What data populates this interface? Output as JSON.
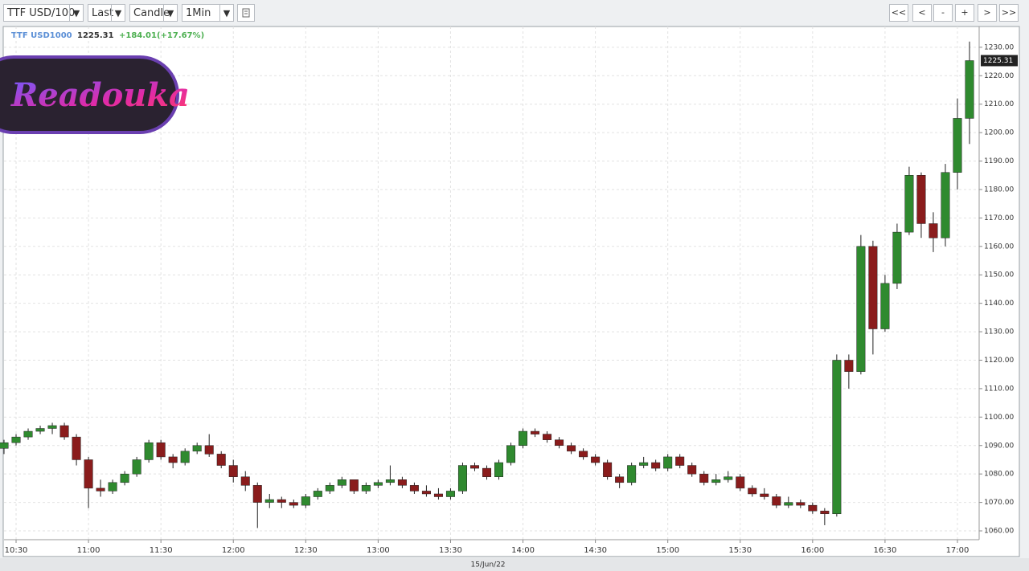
{
  "toolbar": {
    "symbol": "TTF USD/100",
    "price_field": "Last",
    "chart_style": "Candle",
    "interval": "1Min",
    "buttons": [
      "<<",
      "<",
      "-",
      "+",
      ">",
      ">>"
    ]
  },
  "watermark": "Readouka",
  "chart_data": {
    "type": "candlestick",
    "name": "TTF USD1000",
    "last": 1225.31,
    "change_label": "+184.01(+17.67%)",
    "date_label": "15/Jun/22",
    "up_color": "#2f8a2f",
    "down_color": "#8a1c1c",
    "grid": true,
    "xlim": [
      625,
      1029
    ],
    "ylim": [
      1056.9,
      1237.3
    ],
    "xticks": [
      {
        "value": 630,
        "label": "10:30"
      },
      {
        "value": 660,
        "label": "11:00"
      },
      {
        "value": 690,
        "label": "11:30"
      },
      {
        "value": 720,
        "label": "12:00"
      },
      {
        "value": 750,
        "label": "12:30"
      },
      {
        "value": 780,
        "label": "13:00"
      },
      {
        "value": 810,
        "label": "13:30"
      },
      {
        "value": 840,
        "label": "14:00"
      },
      {
        "value": 870,
        "label": "14:30"
      },
      {
        "value": 900,
        "label": "15:00"
      },
      {
        "value": 930,
        "label": "15:30"
      },
      {
        "value": 960,
        "label": "16:00"
      },
      {
        "value": 990,
        "label": "16:30"
      },
      {
        "value": 1020,
        "label": "17:00"
      }
    ],
    "yticks": [
      {
        "value": 1060,
        "label": "1060.00"
      },
      {
        "value": 1070,
        "label": "1070.00"
      },
      {
        "value": 1080,
        "label": "1080.00"
      },
      {
        "value": 1090,
        "label": "1090.00"
      },
      {
        "value": 1100,
        "label": "1100.00"
      },
      {
        "value": 1110,
        "label": "1110.00"
      },
      {
        "value": 1120,
        "label": "1120.00"
      },
      {
        "value": 1130,
        "label": "1130.00"
      },
      {
        "value": 1140,
        "label": "1140.00"
      },
      {
        "value": 1150,
        "label": "1150.00"
      },
      {
        "value": 1160,
        "label": "1160.00"
      },
      {
        "value": 1170,
        "label": "1170.00"
      },
      {
        "value": 1180,
        "label": "1180.00"
      },
      {
        "value": 1190,
        "label": "1190.00"
      },
      {
        "value": 1200,
        "label": "1200.00"
      },
      {
        "value": 1210,
        "label": "1210.00"
      },
      {
        "value": 1220,
        "label": "1220.00"
      },
      {
        "value": 1230,
        "label": "1230.00"
      }
    ],
    "x": [
      625,
      630,
      635,
      640,
      645,
      650,
      655,
      660,
      665,
      670,
      675,
      680,
      685,
      690,
      695,
      700,
      705,
      710,
      715,
      720,
      725,
      730,
      735,
      740,
      745,
      750,
      755,
      760,
      765,
      770,
      775,
      780,
      785,
      790,
      795,
      800,
      805,
      810,
      815,
      820,
      825,
      830,
      835,
      840,
      845,
      850,
      855,
      860,
      865,
      870,
      875,
      880,
      885,
      890,
      895,
      900,
      905,
      910,
      915,
      920,
      925,
      930,
      935,
      940,
      945,
      950,
      955,
      960,
      965,
      970,
      975,
      980,
      985,
      990,
      995,
      1000,
      1005,
      1010,
      1015,
      1020,
      1025
    ],
    "open": [
      1089,
      1091,
      1093,
      1095,
      1096,
      1097,
      1093,
      1085,
      1075,
      1074,
      1077,
      1080,
      1085,
      1091,
      1086,
      1084,
      1088,
      1090,
      1087,
      1083,
      1079,
      1076,
      1070,
      1071,
      1070,
      1069,
      1072,
      1074,
      1076,
      1078,
      1074,
      1076,
      1077,
      1078,
      1076,
      1074,
      1073,
      1072,
      1074,
      1083,
      1082,
      1079,
      1084,
      1090,
      1095,
      1094,
      1092,
      1090,
      1088,
      1086,
      1084,
      1079,
      1077,
      1083,
      1084,
      1082,
      1086,
      1083,
      1080,
      1077,
      1078,
      1079,
      1075,
      1073,
      1072,
      1069,
      1070,
      1069,
      1067,
      1066,
      1120,
      1116,
      1160,
      1131,
      1147,
      1165,
      1185,
      1168,
      1163,
      1186,
      1205
    ],
    "high": [
      1092,
      1094,
      1096,
      1097,
      1098,
      1098,
      1094,
      1086,
      1078,
      1078,
      1081,
      1086,
      1092,
      1092,
      1087,
      1089,
      1091,
      1094,
      1088,
      1085,
      1081,
      1077,
      1073,
      1072,
      1071,
      1073,
      1075,
      1077,
      1079,
      1078,
      1077,
      1078,
      1083,
      1079,
      1077,
      1076,
      1075,
      1075,
      1084,
      1084,
      1083,
      1085,
      1091,
      1096,
      1096,
      1095,
      1093,
      1091,
      1089,
      1087,
      1085,
      1080,
      1084,
      1086,
      1085,
      1087,
      1087,
      1084,
      1081,
      1080,
      1081,
      1080,
      1076,
      1075,
      1073,
      1072,
      1071,
      1070,
      1068,
      1122,
      1122,
      1164,
      1162,
      1150,
      1168,
      1188,
      1186,
      1172,
      1189,
      1212,
      1232
    ],
    "low": [
      1087,
      1090,
      1092,
      1094,
      1094,
      1092,
      1083,
      1068,
      1072,
      1073,
      1076,
      1079,
      1084,
      1085,
      1082,
      1083,
      1087,
      1086,
      1082,
      1077,
      1074,
      1061,
      1068,
      1068,
      1068,
      1068,
      1071,
      1073,
      1075,
      1073,
      1073,
      1075,
      1076,
      1075,
      1073,
      1072,
      1071,
      1071,
      1073,
      1081,
      1078,
      1078,
      1083,
      1089,
      1093,
      1091,
      1089,
      1087,
      1085,
      1083,
      1078,
      1075,
      1076,
      1082,
      1081,
      1081,
      1082,
      1079,
      1076,
      1076,
      1077,
      1074,
      1072,
      1071,
      1068,
      1068,
      1068,
      1066,
      1062,
      1065,
      1110,
      1115,
      1122,
      1130,
      1145,
      1164,
      1163,
      1158,
      1160,
      1180,
      1196
    ],
    "close": [
      1091,
      1093,
      1095,
      1096,
      1097,
      1093,
      1085,
      1075,
      1074,
      1077,
      1080,
      1085,
      1091,
      1086,
      1084,
      1088,
      1090,
      1087,
      1083,
      1079,
      1076,
      1070,
      1071,
      1070,
      1069,
      1072,
      1074,
      1076,
      1078,
      1074,
      1076,
      1077,
      1078,
      1076,
      1074,
      1073,
      1072,
      1074,
      1083,
      1082,
      1079,
      1084,
      1090,
      1095,
      1094,
      1092,
      1090,
      1088,
      1086,
      1084,
      1079,
      1077,
      1083,
      1084,
      1082,
      1086,
      1083,
      1080,
      1077,
      1078,
      1079,
      1075,
      1073,
      1072,
      1069,
      1070,
      1069,
      1067,
      1066,
      1120,
      1116,
      1160,
      1131,
      1147,
      1165,
      1185,
      1168,
      1163,
      1186,
      1205,
      1225.31
    ]
  }
}
